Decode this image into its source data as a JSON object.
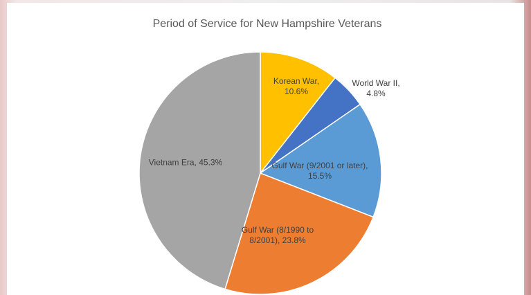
{
  "chart_data": {
    "type": "pie",
    "title": "Period of Service for New Hampshire Veterans",
    "categories": [
      "Korean War",
      "World War II",
      "Gulf War (9/2001 or later)",
      "Gulf War (8/1990 to 8/2001)",
      "Vietnam Era"
    ],
    "values": [
      10.6,
      4.8,
      15.5,
      23.8,
      45.3
    ],
    "value_labels": [
      "Korean War, 10.6%",
      "World War II, 4.8%",
      "Gulf War (9/2001 or later), 15.5%",
      "Gulf War (8/1990 to 8/2001), 23.8%",
      "Vietnam Era, 45.3%"
    ],
    "colors": [
      "#FFC000",
      "#4472C4",
      "#5B9BD5",
      "#ED7D31",
      "#A5A5A5"
    ]
  }
}
